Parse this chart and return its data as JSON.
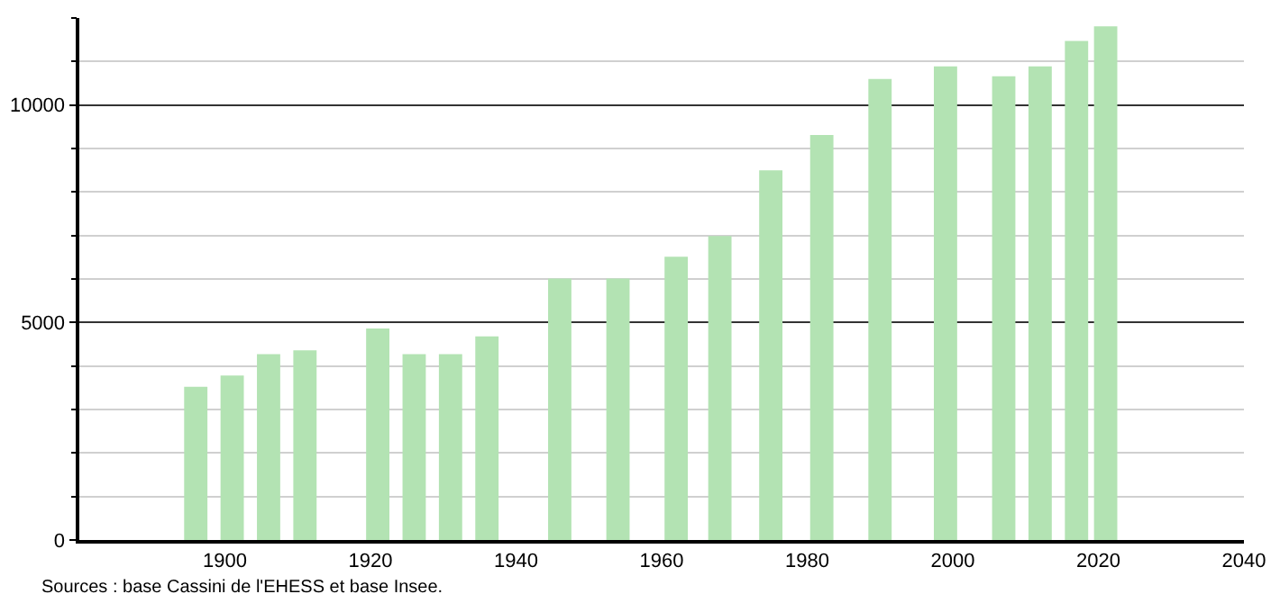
{
  "chart_data": {
    "type": "bar",
    "x": [
      1896,
      1901,
      1906,
      1911,
      1921,
      1926,
      1931,
      1936,
      1946,
      1954,
      1962,
      1968,
      1975,
      1982,
      1990,
      1999,
      2007,
      2012,
      2017,
      2021
    ],
    "values": [
      3520,
      3780,
      4270,
      4360,
      4860,
      4270,
      4270,
      4680,
      6010,
      6010,
      6510,
      6990,
      8500,
      9310,
      10600,
      10890,
      10660,
      10890,
      11470,
      11810
    ],
    "color": "#b3e3b3",
    "xlim": [
      1880,
      2040
    ],
    "xticks": [
      1900,
      1920,
      1940,
      1960,
      1980,
      2000,
      2020,
      2040
    ],
    "ylim": [
      0,
      12000
    ],
    "yticks": [
      0,
      {
        "value": 1000,
        "label": null
      },
      {
        "value": 2000,
        "label": null
      },
      {
        "value": 3000,
        "label": null
      },
      {
        "value": 4000,
        "label": null
      },
      5000,
      {
        "value": 6000,
        "label": null
      },
      {
        "value": 7000,
        "label": null
      },
      {
        "value": 8000,
        "label": null
      },
      {
        "value": 9000,
        "label": null
      },
      10000,
      {
        "value": 11000,
        "label": null
      },
      {
        "value": 12000,
        "label": null
      }
    ],
    "grid": "y",
    "legend": false,
    "annotations": [
      "Sources : base Cassini de l'EHESS et base Insee."
    ]
  }
}
